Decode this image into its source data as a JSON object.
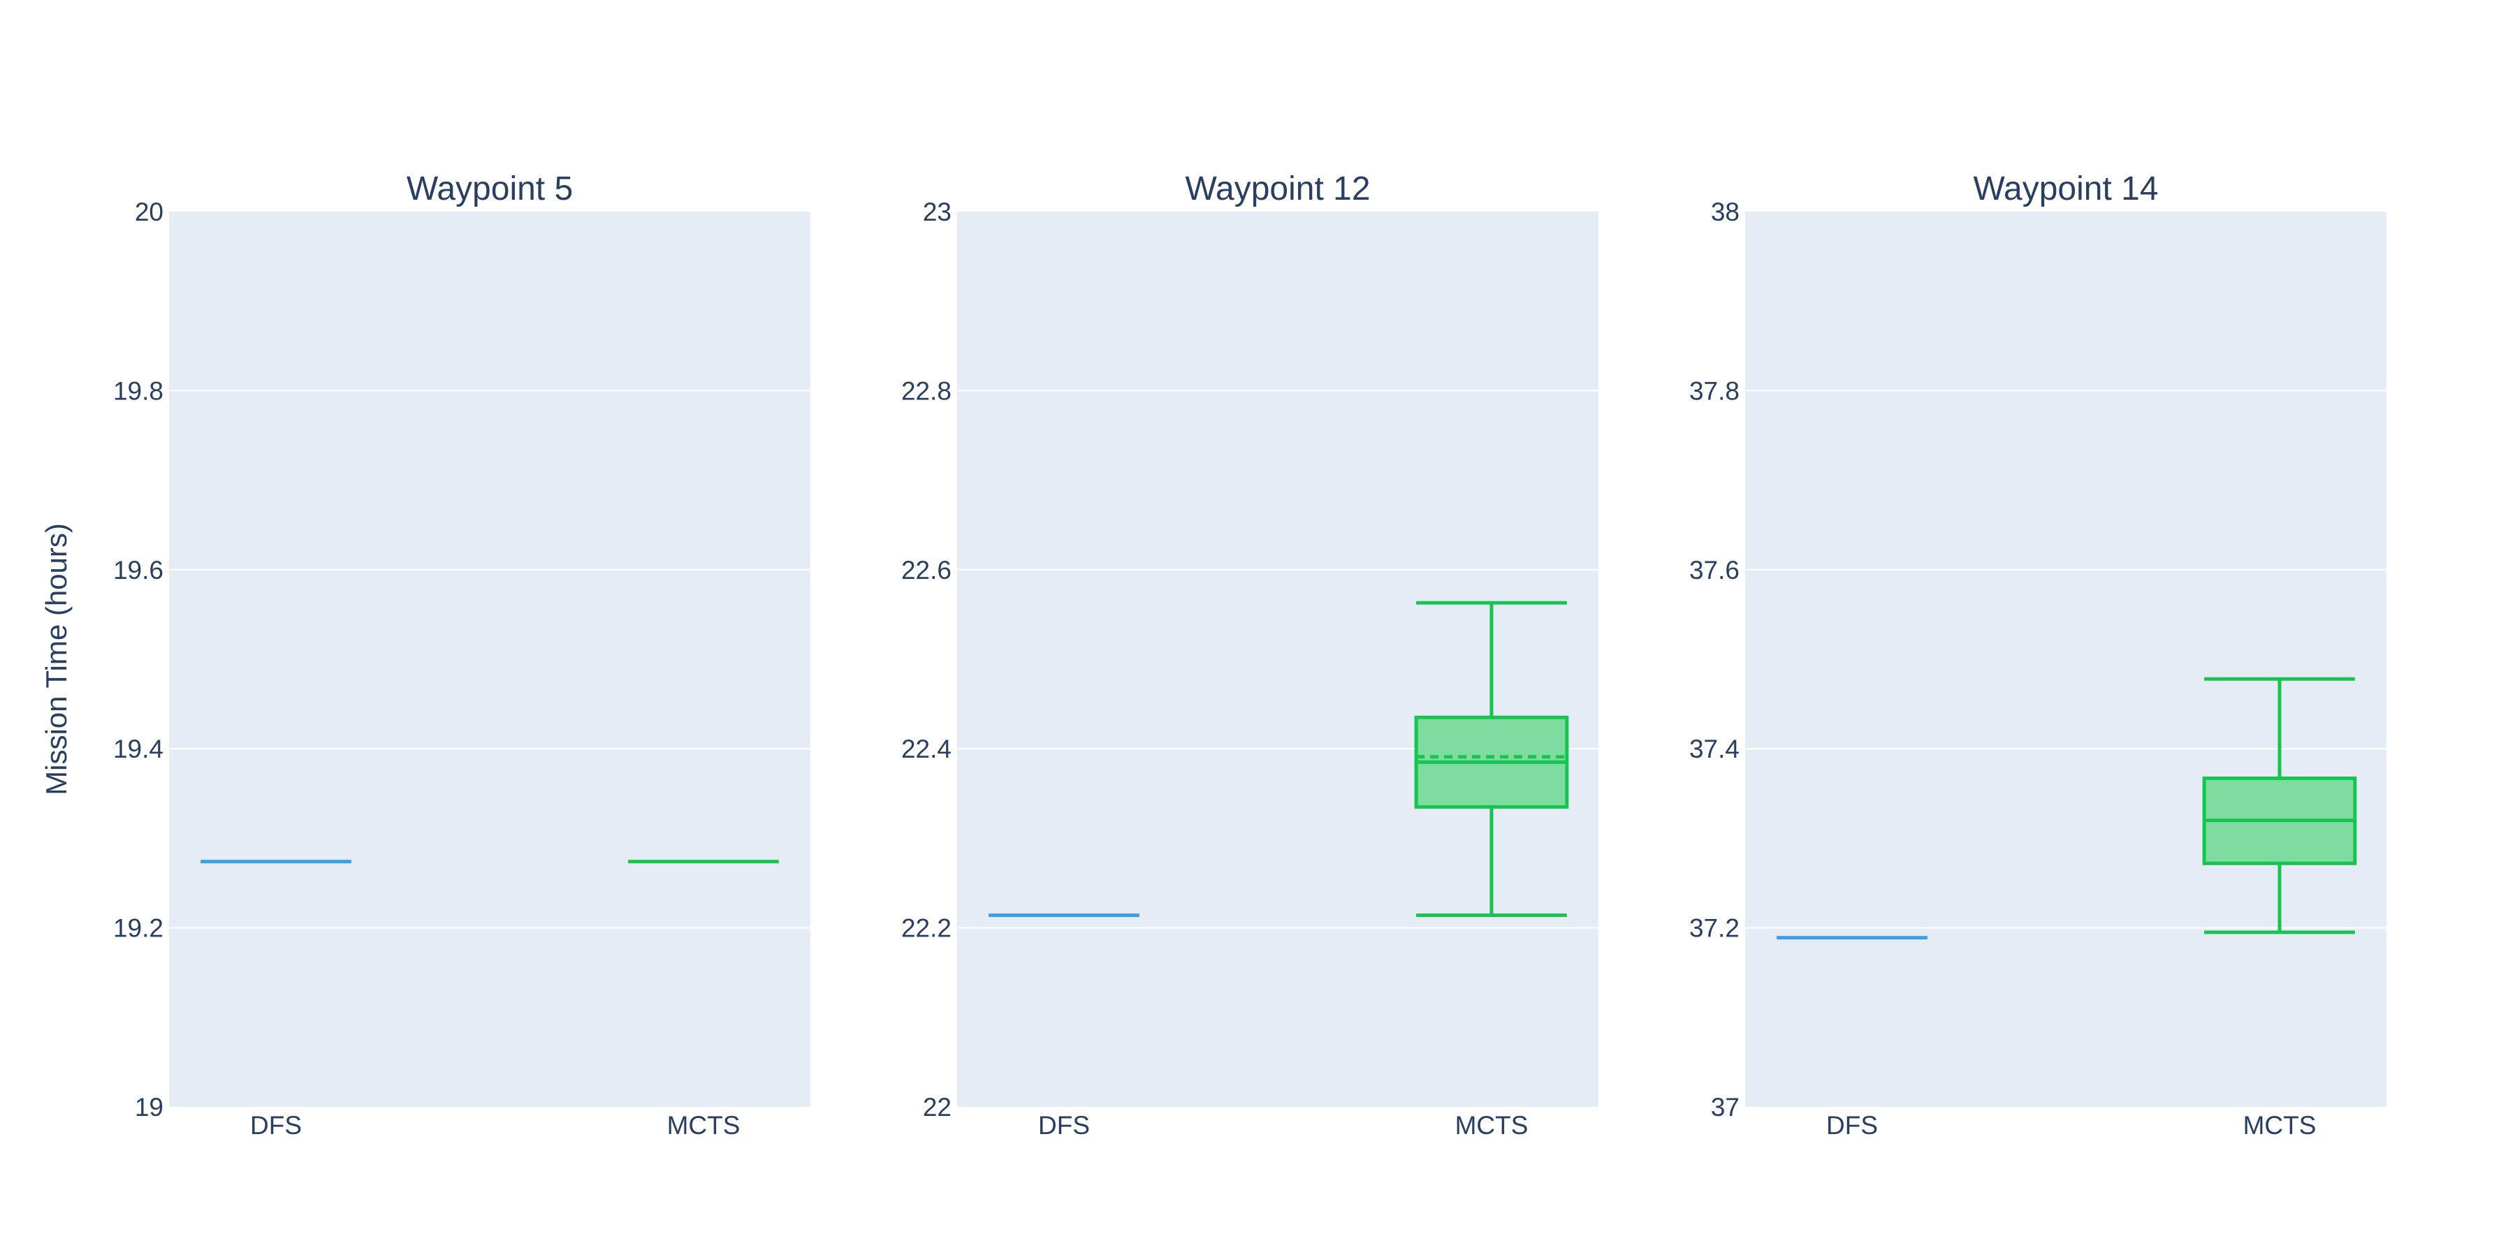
{
  "chart_data": {
    "type": "box",
    "ylabel": "Mission Time (hours)",
    "colors": {
      "DFS": "#3b9ee8",
      "MCTS": "#18c44f",
      "MCTS_fill": "#7edca0",
      "plot_bg": "#e5ecf6",
      "grid": "#ffffff",
      "text": "#2a3f5f"
    },
    "categories": [
      "DFS",
      "MCTS"
    ],
    "panels": [
      {
        "title": "Waypoint 5",
        "ylim": [
          19,
          20
        ],
        "yticks": [
          "19",
          "19.2",
          "19.4",
          "19.6",
          "19.8",
          "20"
        ],
        "boxes": [
          {
            "category": "DFS",
            "min": 19.274,
            "q1": 19.274,
            "median": 19.274,
            "q3": 19.274,
            "max": 19.274,
            "mean": 19.274
          },
          {
            "category": "MCTS",
            "min": 19.274,
            "q1": 19.274,
            "median": 19.274,
            "q3": 19.274,
            "max": 19.274,
            "mean": 19.274
          }
        ]
      },
      {
        "title": "Waypoint 12",
        "ylim": [
          22,
          23
        ],
        "yticks": [
          "22",
          "22.2",
          "22.4",
          "22.6",
          "22.8",
          "23"
        ],
        "boxes": [
          {
            "category": "DFS",
            "min": 22.214,
            "q1": 22.214,
            "median": 22.214,
            "q3": 22.214,
            "max": 22.214,
            "mean": 22.214
          },
          {
            "category": "MCTS",
            "min": 22.214,
            "q1": 22.335,
            "median": 22.385,
            "q3": 22.435,
            "max": 22.563,
            "mean": 22.391
          }
        ]
      },
      {
        "title": "Waypoint 14",
        "ylim": [
          37,
          38
        ],
        "yticks": [
          "37",
          "37.2",
          "37.4",
          "37.6",
          "37.8",
          "38"
        ],
        "boxes": [
          {
            "category": "DFS",
            "min": 37.189,
            "q1": 37.189,
            "median": 37.189,
            "q3": 37.189,
            "max": 37.189,
            "mean": 37.189
          },
          {
            "category": "MCTS",
            "min": 37.195,
            "q1": 37.272,
            "median": 37.32,
            "q3": 37.367,
            "max": 37.478,
            "mean": 37.32
          }
        ]
      }
    ]
  }
}
